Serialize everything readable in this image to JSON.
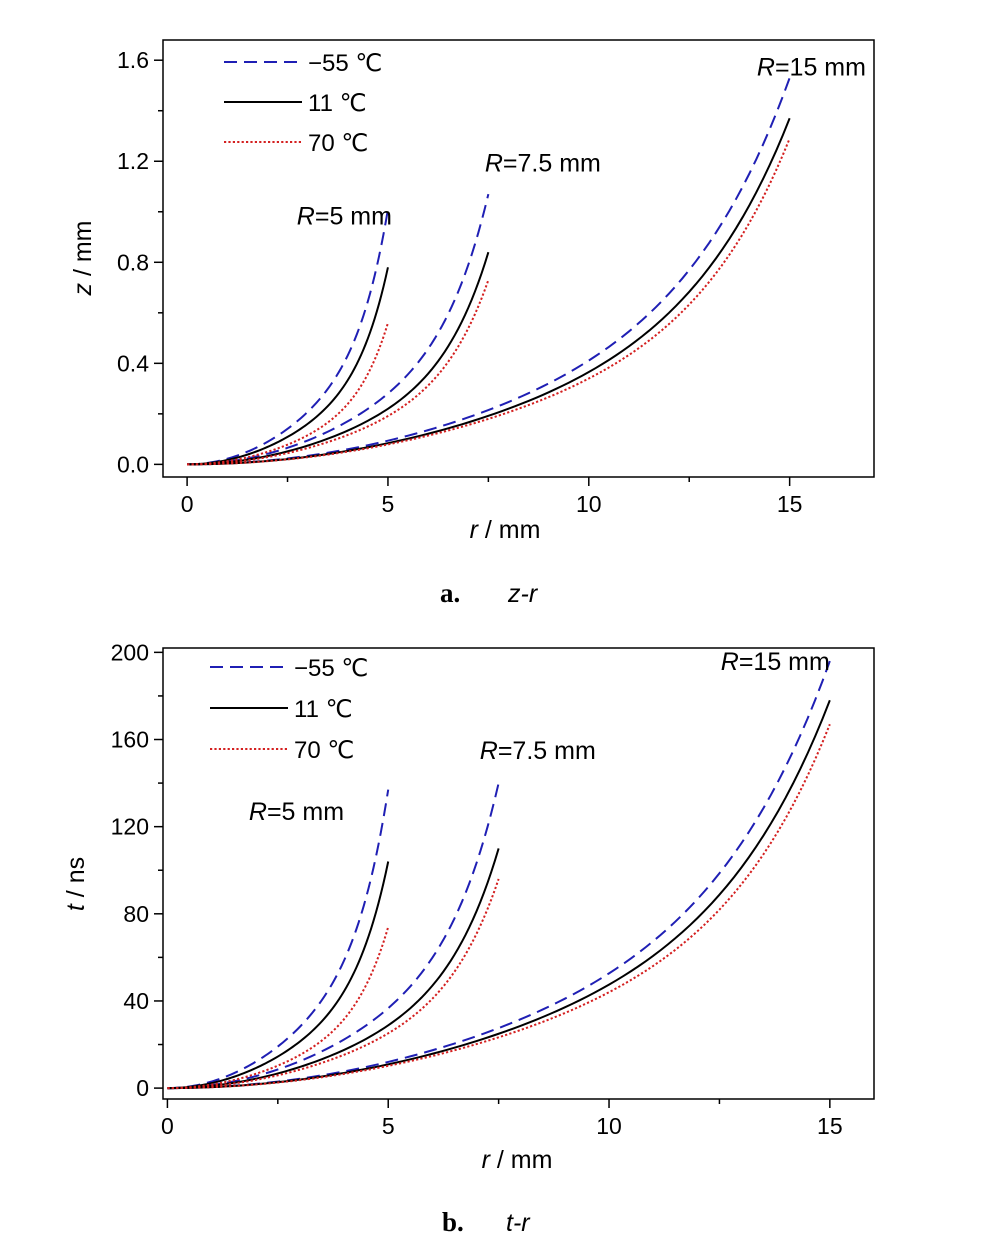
{
  "chart_data": [
    {
      "type": "line",
      "xlabel_var": "r",
      "xlabel_unit": " / mm",
      "ylabel_var": "z",
      "ylabel_unit": " / mm",
      "xlim": [
        -0.6,
        17.1
      ],
      "ylim": [
        -0.05,
        1.68
      ],
      "xticks": [
        0,
        5,
        10,
        15
      ],
      "xtick_labels": [
        "0",
        "5",
        "10",
        "15"
      ],
      "yticks": [
        0.0,
        0.4,
        0.8,
        1.2,
        1.6
      ],
      "ytick_labels": [
        "0.0",
        "0.4",
        "0.8",
        "1.2",
        "1.6"
      ],
      "legend_placement": "top-left",
      "caption_letter": "a.",
      "caption_text": "z-r",
      "annotations": [
        {
          "var": "R",
          "text": "=5 mm",
          "x": 5.1,
          "y": 0.95
        },
        {
          "var": "R",
          "text": "=7.5 mm",
          "x": 10.3,
          "y": 1.16
        },
        {
          "var": "R",
          "text": "=15 mm",
          "x": 16.9,
          "y": 1.54
        }
      ],
      "series": [
        {
          "name": "−55 ℃",
          "style": "dashed",
          "color": "#1f1fb4",
          "curves": [
            {
              "R": 5,
              "end": 1.01,
              "shape": 3.0
            },
            {
              "R": 7.5,
              "end": 1.07,
              "shape": 3.0
            },
            {
              "R": 15,
              "end": 1.53,
              "shape": 2.6
            }
          ]
        },
        {
          "name": "11  ℃",
          "style": "solid",
          "color": "#000000",
          "curves": [
            {
              "R": 5,
              "end": 0.78,
              "shape": 3.0
            },
            {
              "R": 7.5,
              "end": 0.84,
              "shape": 3.0
            },
            {
              "R": 15,
              "end": 1.37,
              "shape": 2.7
            }
          ]
        },
        {
          "name": "70  ℃",
          "style": "dotted",
          "color": "#d42020",
          "curves": [
            {
              "R": 5,
              "end": 0.56,
              "shape": 3.0
            },
            {
              "R": 7.5,
              "end": 0.73,
              "shape": 3.0
            },
            {
              "R": 15,
              "end": 1.29,
              "shape": 2.9
            }
          ]
        }
      ]
    },
    {
      "type": "line",
      "xlabel_var": "r",
      "xlabel_unit": " / mm",
      "ylabel_var": "t",
      "ylabel_unit": " / ns",
      "xlim": [
        -0.1,
        16.0
      ],
      "ylim": [
        -5,
        202
      ],
      "xticks": [
        0,
        5,
        10,
        15
      ],
      "xtick_labels": [
        "0",
        "5",
        "10",
        "15"
      ],
      "yticks": [
        0,
        40,
        80,
        120,
        160,
        200
      ],
      "ytick_labels": [
        "0",
        "40",
        "80",
        "120",
        "160",
        "200"
      ],
      "legend_placement": "top-left",
      "caption_letter": "b.",
      "caption_text": "t-r",
      "annotations": [
        {
          "var": "R",
          "text": "=5 mm",
          "x": 4.0,
          "y": 123
        },
        {
          "var": "R",
          "text": "=7.5 mm",
          "x": 9.7,
          "y": 151
        },
        {
          "var": "R",
          "text": "=15 mm",
          "x": 15.0,
          "y": 192
        }
      ],
      "series": [
        {
          "name": "−55 ℃",
          "style": "dashed",
          "color": "#1f1fb4",
          "curves": [
            {
              "R": 5,
              "end": 137,
              "shape": 3.0
            },
            {
              "R": 7.5,
              "end": 140,
              "shape": 3.0
            },
            {
              "R": 15,
              "end": 196,
              "shape": 2.6
            }
          ]
        },
        {
          "name": "11 ℃",
          "style": "solid",
          "color": "#000000",
          "curves": [
            {
              "R": 5,
              "end": 104,
              "shape": 3.0
            },
            {
              "R": 7.5,
              "end": 110,
              "shape": 3.0
            },
            {
              "R": 15,
              "end": 178,
              "shape": 2.7
            }
          ]
        },
        {
          "name": "70 ℃",
          "style": "dotted",
          "color": "#d42020",
          "curves": [
            {
              "R": 5,
              "end": 74,
              "shape": 3.0
            },
            {
              "R": 7.5,
              "end": 96,
              "shape": 3.0
            },
            {
              "R": 15,
              "end": 167,
              "shape": 2.9
            }
          ]
        }
      ]
    }
  ]
}
